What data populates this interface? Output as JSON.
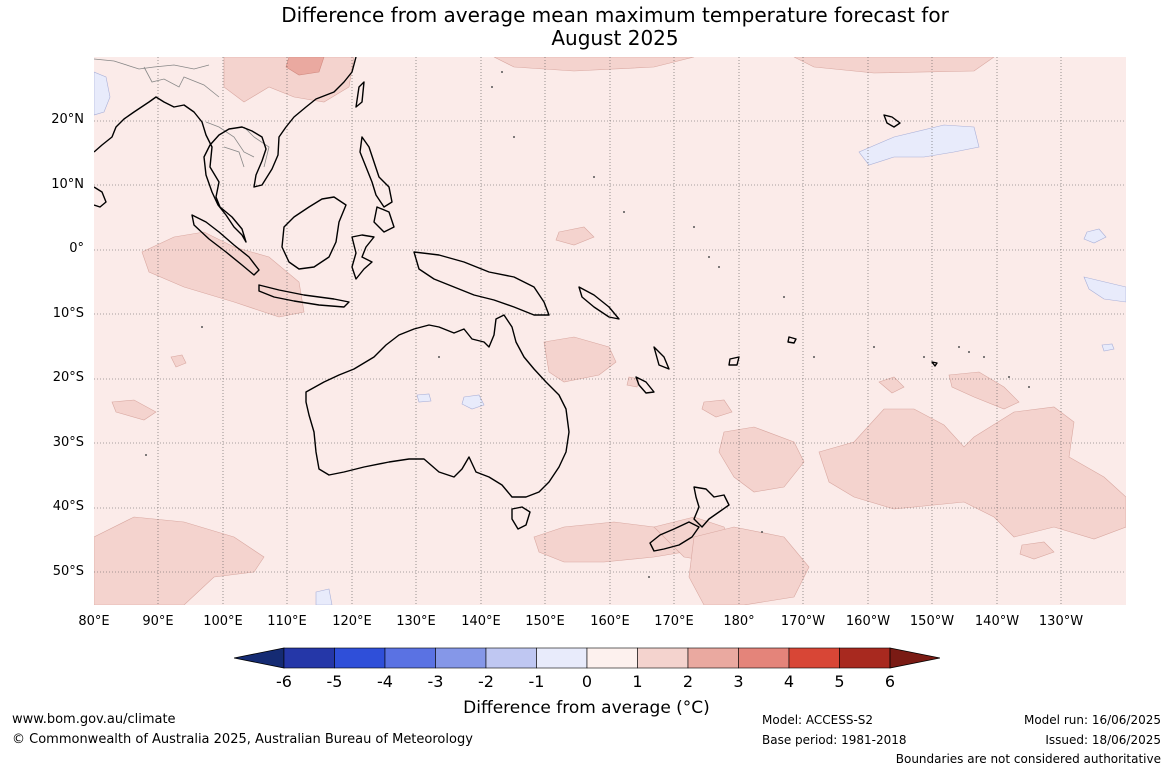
{
  "title_line1": "Difference from average mean maximum temperature forecast for",
  "title_line2": "August 2025",
  "lat_labels": [
    "20°N",
    "10°N",
    "0°",
    "10°S",
    "20°S",
    "30°S",
    "40°S",
    "50°S"
  ],
  "lon_labels": [
    "80°E",
    "90°E",
    "100°E",
    "110°E",
    "120°E",
    "130°E",
    "140°E",
    "150°E",
    "160°E",
    "170°E",
    "180°",
    "170°W",
    "160°W",
    "150°W",
    "140°W",
    "130°W"
  ],
  "colorbar": {
    "ticks": [
      "-6",
      "-5",
      "-4",
      "-3",
      "-2",
      "-1",
      "0",
      "1",
      "2",
      "3",
      "4",
      "5",
      "6"
    ],
    "colors": [
      "#152b73",
      "#2537a8",
      "#2f4fd9",
      "#5a72e3",
      "#8597e8",
      "#bfc7f2",
      "#e8ebfb",
      "#fdf1ee",
      "#f4d3ce",
      "#eaa9a0",
      "#e4847a",
      "#d84636",
      "#a8291f",
      "#7a1b14"
    ],
    "label": "Difference from average (°C)"
  },
  "footer": {
    "site": "www.bom.gov.au/climate",
    "copyright": "© Commonwealth of Australia 2025, Australian Bureau of Meteorology",
    "model": "Model: ACCESS-S2",
    "base_period": "Base period: 1981-2018",
    "model_run": "Model run: 16/06/2025",
    "issued": "Issued: 18/06/2025",
    "disclaimer": "Boundaries are not considered authoritative"
  },
  "map_colors": {
    "background": "#fbebe9",
    "warm_anomaly": "#f4d3ce",
    "strong_warm_anomaly": "#eaa9a0",
    "cool_anomaly": "#e8ebfb",
    "coastline": "#000000",
    "grid": "#555555"
  }
}
